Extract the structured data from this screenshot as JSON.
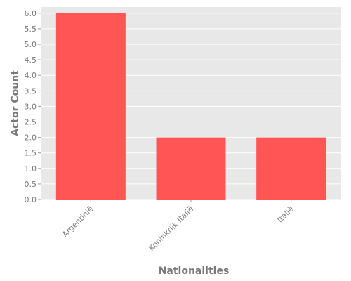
{
  "chart_data": {
    "type": "bar",
    "title": "",
    "xlabel": "Nationalities",
    "ylabel": "Actor Count",
    "categories": [
      "Argentinië",
      "Koninkrijk Italië",
      "Italië"
    ],
    "values": [
      6,
      2,
      2
    ],
    "ylim": [
      0,
      6.2
    ],
    "yticks": [
      "0.0",
      "0.5",
      "1.0",
      "1.5",
      "2.0",
      "2.5",
      "3.0",
      "3.5",
      "4.0",
      "4.5",
      "5.0",
      "5.5",
      "6.0"
    ],
    "grid": true,
    "legend": "none",
    "colors": {
      "bar": "#ff5555",
      "plot_background": "#e8e8e8",
      "gridline": "#ffffff",
      "text": "#7a7a7a"
    }
  }
}
